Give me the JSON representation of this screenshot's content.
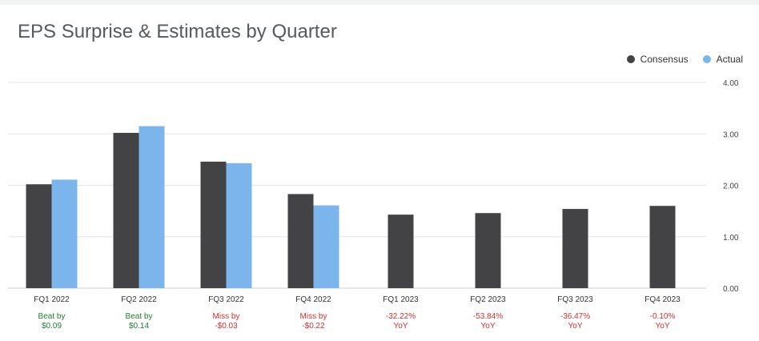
{
  "chart_data": {
    "type": "bar",
    "title": "EPS Surprise & Estimates by Quarter",
    "categories": [
      "FQ1 2022",
      "FQ2 2022",
      "FQ3 2022",
      "FQ4 2022",
      "FQ1 2023",
      "FQ2 2023",
      "FQ3 2023",
      "FQ4 2023"
    ],
    "series": [
      {
        "name": "Consensus",
        "color": "#434346",
        "values": [
          2.02,
          3.02,
          2.46,
          1.83,
          1.43,
          1.46,
          1.54,
          1.6
        ]
      },
      {
        "name": "Actual",
        "color": "#7cb5ec",
        "values": [
          2.11,
          3.15,
          2.43,
          1.61,
          null,
          null,
          null,
          null
        ]
      }
    ],
    "ylim": [
      0,
      4
    ],
    "yticks": [
      "0.00",
      "1.00",
      "2.00",
      "3.00",
      "4.00"
    ],
    "y_axis_side": "right",
    "grid": true,
    "legend_position": "top-right",
    "annotations": [
      {
        "line1": "Beat by",
        "line2": "$0.09",
        "color": "#1e7e34"
      },
      {
        "line1": "Beat by",
        "line2": "$0.14",
        "color": "#1e7e34"
      },
      {
        "line1": "Miss by",
        "line2": "-$0.03",
        "color": "#d03030"
      },
      {
        "line1": "Miss by",
        "line2": "-$0.22",
        "color": "#d03030"
      },
      {
        "line1": "-32.22%",
        "line2": "YoY",
        "color": "#d03030"
      },
      {
        "line1": "-53.84%",
        "line2": "YoY",
        "color": "#d03030"
      },
      {
        "line1": "-36.47%",
        "line2": "YoY",
        "color": "#d03030"
      },
      {
        "line1": "-0.10%",
        "line2": "YoY",
        "color": "#d03030"
      }
    ]
  }
}
